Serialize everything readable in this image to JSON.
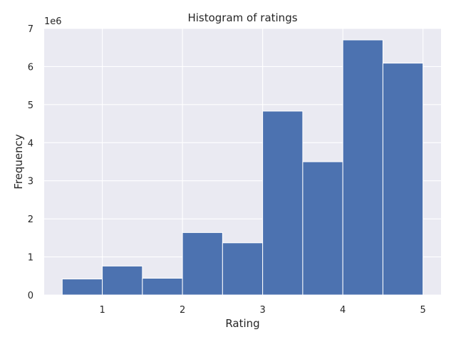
{
  "chart_data": {
    "type": "bar",
    "title": "Histogram of ratings",
    "xlabel": "Rating",
    "ylabel": "Frequency",
    "y_scale_label": "1e6",
    "y_multiplier": 1000000,
    "xlim": [
      0.275,
      5.225
    ],
    "ylim": [
      0,
      7000000
    ],
    "x_ticks": [
      1,
      2,
      3,
      4,
      5
    ],
    "y_ticks": [
      0,
      1,
      2,
      3,
      4,
      5,
      6,
      7
    ],
    "bin_edges": [
      0.5,
      1.0,
      1.5,
      2.0,
      2.5,
      3.0,
      3.5,
      4.0,
      4.5,
      5.0
    ],
    "values": [
      420000,
      760000,
      440000,
      1640000,
      1370000,
      4830000,
      3500000,
      6700000,
      6090000
    ],
    "grid": true,
    "colors": {
      "bar": "#4c72b0",
      "background": "#eaeaf2",
      "grid": "#ffffff",
      "text": "#262626"
    }
  }
}
